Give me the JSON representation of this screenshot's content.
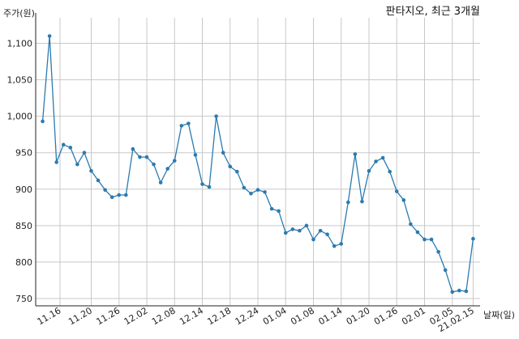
{
  "chart_data": {
    "type": "line",
    "title": "판타지오, 최근 3개월",
    "ylabel": "주가(원)",
    "xlabel": "날짜(일)",
    "ylim": [
      740,
      1135
    ],
    "grid": true,
    "y_ticks": [
      750,
      800,
      850,
      900,
      950,
      1000,
      1050,
      1100
    ],
    "y_tick_labels": [
      "750",
      "800",
      "850",
      "900",
      "950",
      "1,000",
      "1,050",
      "1,100"
    ],
    "x_tick_labels": [
      "11.16",
      "11.20",
      "11.26",
      "12.02",
      "12.08",
      "12.14",
      "12.18",
      "12.24",
      "01.04",
      "01.08",
      "01.14",
      "01.20",
      "01.26",
      "02.01",
      "02.05",
      "21.02.15"
    ],
    "x_tick_positions": [
      2.5,
      7,
      11,
      15,
      19,
      23,
      27,
      31,
      35,
      39,
      43,
      47,
      51,
      55,
      59,
      62
    ],
    "series": [
      {
        "color": "#2b7bb0",
        "values": [
          993,
          1110,
          937,
          961,
          957,
          934,
          950,
          925,
          912,
          899,
          889,
          892,
          892,
          955,
          944,
          944,
          934,
          909,
          928,
          939,
          987,
          990,
          947,
          907,
          903,
          1000,
          950,
          931,
          924,
          902,
          894,
          899,
          896,
          873,
          870,
          840,
          845,
          843,
          850,
          831,
          843,
          838,
          822,
          825,
          882,
          948,
          883,
          925,
          938,
          943,
          924,
          897,
          885,
          852,
          841,
          831,
          831,
          814,
          789,
          759,
          761,
          760,
          832
        ]
      }
    ]
  }
}
